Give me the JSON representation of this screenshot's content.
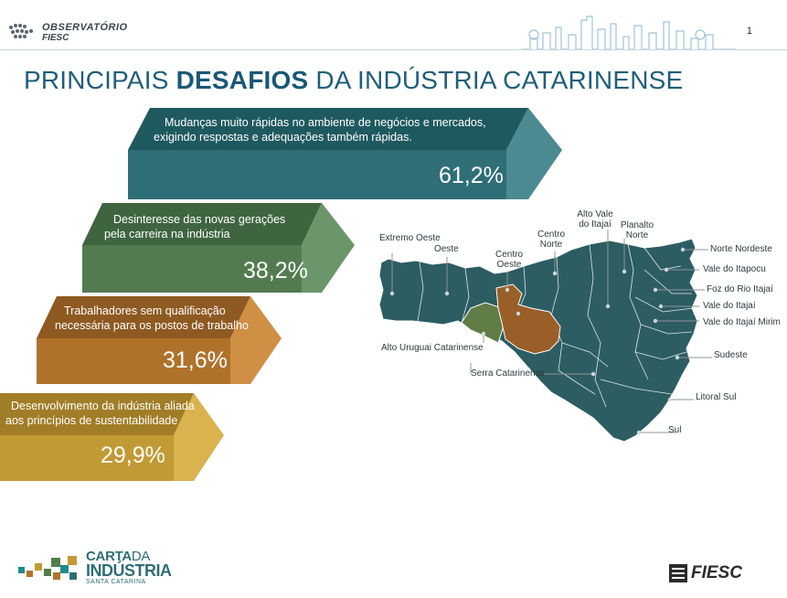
{
  "header": {
    "logo_line1": "OBSERVATÓRIO",
    "logo_line2": "FIESC",
    "page_number": "1"
  },
  "title": {
    "part1": "PRINCIPAIS ",
    "bold": "DESAFIOS",
    "part2": " DA INDÚSTRIA CATARINENSE"
  },
  "challenges": [
    {
      "line1": "Mudanças muito rápidas no ambiente de negócios e mercados,",
      "line2": "exigindo respostas e adequações também rápidas.",
      "value": "61,2%",
      "percent": 61.2,
      "color": "#2f6e76"
    },
    {
      "line1": "Desinteresse das novas gerações",
      "line2": "pela carreira na indústria",
      "value": "38,2%",
      "percent": 38.2,
      "color": "#527c4f"
    },
    {
      "line1": "Trabalhadores sem qualificação",
      "line2": "necessária para os postos de trabalho",
      "value": "31,6%",
      "percent": 31.6,
      "color": "#b0722b"
    },
    {
      "line1": "Desenvolvimento da indústria aliada",
      "line2": "aos princípios de sustentabilidade",
      "value": "29,9%",
      "percent": 29.9,
      "color": "#c29a35"
    }
  ],
  "map": {
    "regions": {
      "extremo_oeste": "Extremo Oeste",
      "oeste": "Oeste",
      "centro_oeste": "Centro Oeste",
      "centro_norte": "Centro Norte",
      "alto_vale_itajai": "Alto Vale do Itajaí",
      "planalto_norte": "Planalto Norte",
      "norte_nordeste": "Norte Nordeste",
      "vale_itapocu": "Vale do Itapocu",
      "foz_rio_itajai": "Foz do Rio Itajaí",
      "vale_itajai": "Vale do Itajaí",
      "vale_itajai_mirim": "Vale do Itajaí Mirim",
      "sudeste": "Sudeste",
      "litoral_sul": "Litoral Sul",
      "sul": "Sul",
      "serra_catarinense": "Serra Catarinense",
      "alto_uruguai": "Alto Uruguai Catarinense"
    }
  },
  "footer": {
    "carta_line1": "CARTA",
    "carta_line1b": "DA",
    "carta_line2": "INDÚSTRIA",
    "carta_line3": "SANTA CATARINA",
    "fiesc": "FIESC"
  },
  "colors": {
    "map_fill": "#2c5d63",
    "highlight_brown": "#9a5f28",
    "highlight_green": "#5f7d45",
    "title": "#1f5f7a"
  }
}
